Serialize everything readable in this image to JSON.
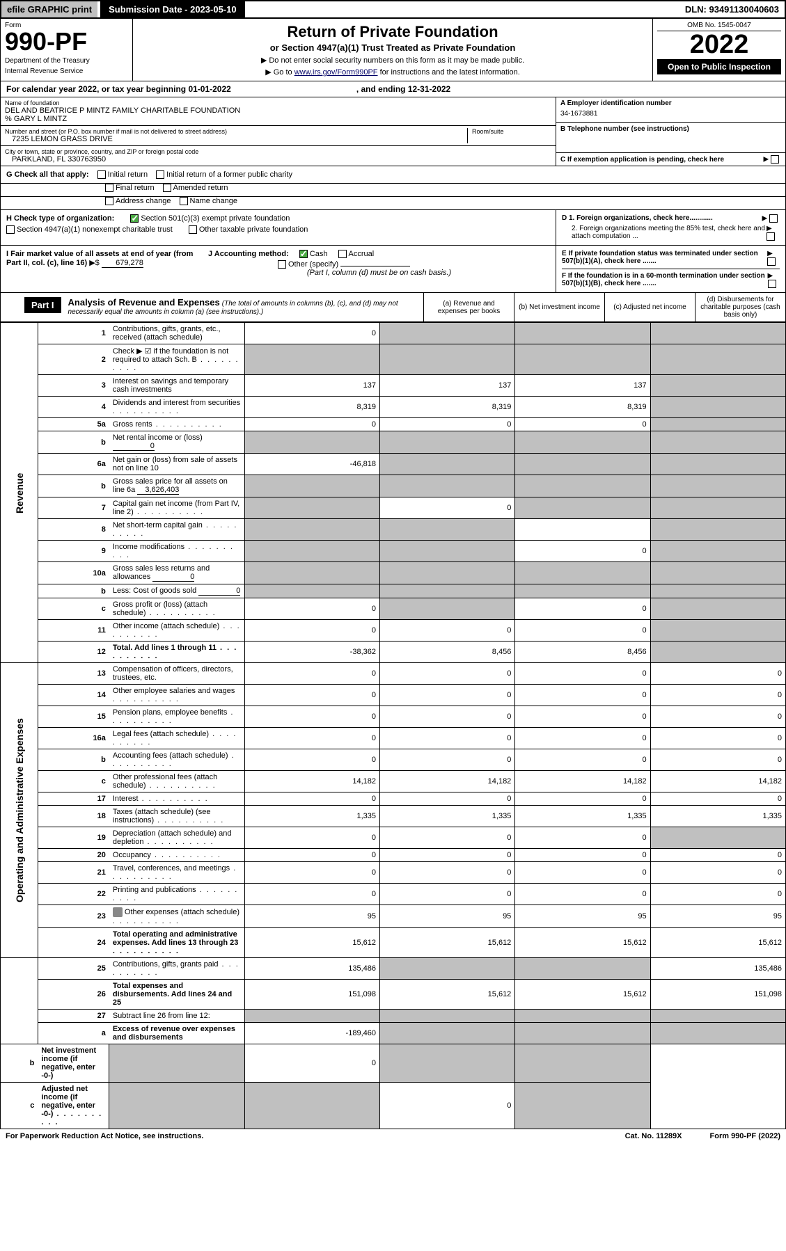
{
  "topbar": {
    "efile": "efile GRAPHIC print",
    "submit": "Submission Date - 2023-05-10",
    "dln": "DLN: 93491130040603"
  },
  "header": {
    "form_label": "Form",
    "form_num": "990-PF",
    "dept": "Department of the Treasury",
    "irs": "Internal Revenue Service",
    "title": "Return of Private Foundation",
    "subtitle": "or Section 4947(a)(1) Trust Treated as Private Foundation",
    "note1": "▶ Do not enter social security numbers on this form as it may be made public.",
    "note2": "▶ Go to ",
    "link": "www.irs.gov/Form990PF",
    "note3": " for instructions and the latest information.",
    "omb": "OMB No. 1545-0047",
    "year": "2022",
    "open": "Open to Public Inspection"
  },
  "calendar": {
    "text": "For calendar year 2022, or tax year beginning 01-01-2022",
    "end": ", and ending 12-31-2022"
  },
  "info": {
    "name_label": "Name of foundation",
    "name": "DEL AND BEATRICE P MINTZ FAMILY CHARITABLE FOUNDATION",
    "care": "% GARY L MINTZ",
    "addr_label": "Number and street (or P.O. box number if mail is not delivered to street address)",
    "room_label": "Room/suite",
    "addr": "7235 LEMON GRASS DRIVE",
    "city_label": "City or town, state or province, country, and ZIP or foreign postal code",
    "city": "PARKLAND, FL  330763950",
    "ein_label": "A Employer identification number",
    "ein": "34-1673881",
    "phone_label": "B Telephone number (see instructions)",
    "c": "C If exemption application is pending, check here",
    "d1": "D 1. Foreign organizations, check here............",
    "d2": "2. Foreign organizations meeting the 85% test, check here and attach computation ...",
    "e": "E  If private foundation status was terminated under section 507(b)(1)(A), check here .......",
    "f": "F  If the foundation is in a 60-month termination under section 507(b)(1)(B), check here ......."
  },
  "g": {
    "label": "G Check all that apply:",
    "opts": [
      "Initial return",
      "Final return",
      "Address change",
      "Initial return of a former public charity",
      "Amended return",
      "Name change"
    ]
  },
  "h": {
    "label": "H Check type of organization:",
    "o1": "Section 501(c)(3) exempt private foundation",
    "o2": "Section 4947(a)(1) nonexempt charitable trust",
    "o3": "Other taxable private foundation"
  },
  "i": {
    "label": "I Fair market value of all assets at end of year (from Part II, col. (c), line 16)",
    "arrow": "▶$",
    "val": "679,278"
  },
  "j": {
    "label": "J Accounting method:",
    "o1": "Cash",
    "o2": "Accrual",
    "o3": "Other (specify)",
    "note": "(Part I, column (d) must be on cash basis.)"
  },
  "part1": {
    "label": "Part I",
    "title": "Analysis of Revenue and Expenses",
    "note": "(The total of amounts in columns (b), (c), and (d) may not necessarily equal the amounts in column (a) (see instructions).)",
    "cols": {
      "a": "(a) Revenue and expenses per books",
      "b": "(b) Net investment income",
      "c": "(c) Adjusted net income",
      "d": "(d) Disbursements for charitable purposes (cash basis only)"
    }
  },
  "sides": {
    "rev": "Revenue",
    "exp": "Operating and Administrative Expenses"
  },
  "rows": [
    {
      "n": "1",
      "d": "Contributions, gifts, grants, etc., received (attach schedule)",
      "a": "0",
      "bs": 1,
      "cs": 1,
      "ds": 1
    },
    {
      "n": "2",
      "d": "Check ▶ ☑ if the foundation is not required to attach Sch. B",
      "dots": 1,
      "as": 1,
      "bs": 1,
      "cs": 1,
      "ds": 1,
      "bold_not": 1
    },
    {
      "n": "3",
      "d": "Interest on savings and temporary cash investments",
      "a": "137",
      "b": "137",
      "c": "137",
      "ds": 1
    },
    {
      "n": "4",
      "d": "Dividends and interest from securities",
      "dots": 1,
      "a": "8,319",
      "b": "8,319",
      "c": "8,319",
      "ds": 1
    },
    {
      "n": "5a",
      "d": "Gross rents",
      "dots": 1,
      "a": "0",
      "b": "0",
      "c": "0",
      "ds": 1
    },
    {
      "n": "b",
      "d": "Net rental income or (loss)",
      "inline": "0",
      "as": 1,
      "bs": 1,
      "cs": 1,
      "ds": 1
    },
    {
      "n": "6a",
      "d": "Net gain or (loss) from sale of assets not on line 10",
      "a": "-46,818",
      "bs": 1,
      "cs": 1,
      "ds": 1
    },
    {
      "n": "b",
      "d": "Gross sales price for all assets on line 6a",
      "inline": "3,626,403",
      "as": 1,
      "bs": 1,
      "cs": 1,
      "ds": 1
    },
    {
      "n": "7",
      "d": "Capital gain net income (from Part IV, line 2)",
      "dots": 1,
      "as": 1,
      "b": "0",
      "cs": 1,
      "ds": 1
    },
    {
      "n": "8",
      "d": "Net short-term capital gain",
      "dots": 1,
      "as": 1,
      "bs": 1,
      "ds": 1
    },
    {
      "n": "9",
      "d": "Income modifications",
      "dots": 1,
      "as": 1,
      "bs": 1,
      "c": "0",
      "ds": 1
    },
    {
      "n": "10a",
      "d": "Gross sales less returns and allowances",
      "inline": "0",
      "as": 1,
      "bs": 1,
      "cs": 1,
      "ds": 1
    },
    {
      "n": "b",
      "d": "Less: Cost of goods sold",
      "dots": 1,
      "inline": "0",
      "as": 1,
      "bs": 1,
      "cs": 1,
      "ds": 1
    },
    {
      "n": "c",
      "d": "Gross profit or (loss) (attach schedule)",
      "dots": 1,
      "a": "0",
      "bs": 1,
      "c": "0",
      "ds": 1
    },
    {
      "n": "11",
      "d": "Other income (attach schedule)",
      "dots": 1,
      "a": "0",
      "b": "0",
      "c": "0",
      "ds": 1
    },
    {
      "n": "12",
      "d": "Total. Add lines 1 through 11",
      "dots": 1,
      "bold": 1,
      "a": "-38,362",
      "b": "8,456",
      "c": "8,456",
      "ds": 1
    },
    {
      "n": "13",
      "d": "Compensation of officers, directors, trustees, etc.",
      "a": "0",
      "b": "0",
      "c": "0",
      "dd": "0"
    },
    {
      "n": "14",
      "d": "Other employee salaries and wages",
      "dots": 1,
      "a": "0",
      "b": "0",
      "c": "0",
      "dd": "0"
    },
    {
      "n": "15",
      "d": "Pension plans, employee benefits",
      "dots": 1,
      "a": "0",
      "b": "0",
      "c": "0",
      "dd": "0"
    },
    {
      "n": "16a",
      "d": "Legal fees (attach schedule)",
      "dots": 1,
      "a": "0",
      "b": "0",
      "c": "0",
      "dd": "0"
    },
    {
      "n": "b",
      "d": "Accounting fees (attach schedule)",
      "dots": 1,
      "a": "0",
      "b": "0",
      "c": "0",
      "dd": "0"
    },
    {
      "n": "c",
      "d": "Other professional fees (attach schedule)",
      "dots": 1,
      "a": "14,182",
      "b": "14,182",
      "c": "14,182",
      "dd": "14,182"
    },
    {
      "n": "17",
      "d": "Interest",
      "dots": 1,
      "a": "0",
      "b": "0",
      "c": "0",
      "dd": "0"
    },
    {
      "n": "18",
      "d": "Taxes (attach schedule) (see instructions)",
      "dots": 1,
      "a": "1,335",
      "b": "1,335",
      "c": "1,335",
      "dd": "1,335"
    },
    {
      "n": "19",
      "d": "Depreciation (attach schedule) and depletion",
      "dots": 1,
      "a": "0",
      "b": "0",
      "c": "0",
      "ds": 1
    },
    {
      "n": "20",
      "d": "Occupancy",
      "dots": 1,
      "a": "0",
      "b": "0",
      "c": "0",
      "dd": "0"
    },
    {
      "n": "21",
      "d": "Travel, conferences, and meetings",
      "dots": 1,
      "a": "0",
      "b": "0",
      "c": "0",
      "dd": "0"
    },
    {
      "n": "22",
      "d": "Printing and publications",
      "dots": 1,
      "a": "0",
      "b": "0",
      "c": "0",
      "dd": "0"
    },
    {
      "n": "23",
      "d": "Other expenses (attach schedule)",
      "dots": 1,
      "icon": 1,
      "a": "95",
      "b": "95",
      "c": "95",
      "dd": "95"
    },
    {
      "n": "24",
      "d": "Total operating and administrative expenses. Add lines 13 through 23",
      "dots": 1,
      "bold": 1,
      "a": "15,612",
      "b": "15,612",
      "c": "15,612",
      "dd": "15,612"
    },
    {
      "n": "25",
      "d": "Contributions, gifts, grants paid",
      "dots": 1,
      "a": "135,486",
      "bs": 1,
      "cs": 1,
      "dd": "135,486"
    },
    {
      "n": "26",
      "d": "Total expenses and disbursements. Add lines 24 and 25",
      "bold": 1,
      "a": "151,098",
      "b": "15,612",
      "c": "15,612",
      "dd": "151,098"
    },
    {
      "n": "27",
      "d": "Subtract line 26 from line 12:",
      "as": 1,
      "bs": 1,
      "cs": 1,
      "ds": 1
    },
    {
      "n": "a",
      "d": "Excess of revenue over expenses and disbursements",
      "bold": 1,
      "a": "-189,460",
      "bs": 1,
      "cs": 1,
      "ds": 1
    },
    {
      "n": "b",
      "d": "Net investment income (if negative, enter -0-)",
      "bold": 1,
      "as": 1,
      "b": "0",
      "cs": 1,
      "ds": 1
    },
    {
      "n": "c",
      "d": "Adjusted net income (if negative, enter -0-)",
      "dots": 1,
      "bold": 1,
      "as": 1,
      "bs": 1,
      "c": "0",
      "ds": 1
    }
  ],
  "footer": {
    "left": "For Paperwork Reduction Act Notice, see instructions.",
    "mid": "Cat. No. 11289X",
    "right": "Form 990-PF (2022)"
  }
}
